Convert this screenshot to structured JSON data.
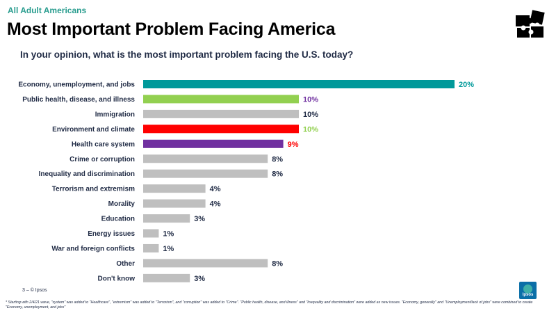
{
  "header": {
    "kicker": "All Adult Americans",
    "title": "Most Important Problem Facing America",
    "subtitle": "In your opinion, what is the most important problem facing the U.S. today?"
  },
  "footer": {
    "page_marker": "3 –  © Ipsos",
    "footnote": "* Starting with 2/4/21 wave, \"system\" was added to \"Healthcare\", \"extremism\" was added to \"Terrorism\", and \"corruption\" was added to \"Crime\". \"Public health, disease, and illness\" and \"Inequality and discrimination\" were added as new issues. \"Economy, generally\" and \"Unemployment/lack of jobs\" were combined to create \"Economy, unemployment, and jobs\"",
    "logo_text": "Ipsos"
  },
  "icons": {
    "logo": "puzzle-pieces-icon",
    "brand": "ipsos-logo-icon"
  },
  "colors": {
    "teal": "#00999a",
    "green": "#92d050",
    "gray": "#bfbfbf",
    "red": "#ff0000",
    "purple": "#7030a0",
    "navy": "#1f2a44"
  },
  "chart_data": {
    "type": "bar",
    "orientation": "horizontal",
    "categories": [
      "Economy, unemployment, and jobs",
      "Public health, disease, and illness",
      "Immigration",
      "Environment and climate",
      "Health care system",
      "Crime or corruption",
      "Inequality and discrimination",
      "Terrorism and extremism",
      "Morality",
      "Education",
      "Energy issues",
      "War and foreign conflicts",
      "Other",
      "Don't know"
    ],
    "values": [
      20,
      10,
      10,
      10,
      9,
      8,
      8,
      4,
      4,
      3,
      1,
      1,
      8,
      3
    ],
    "value_labels": [
      "20%",
      "10%",
      "10%",
      "10%",
      "9%",
      "8%",
      "8%",
      "4%",
      "4%",
      "3%",
      "1%",
      "1%",
      "8%",
      "3%"
    ],
    "bar_colors": [
      "#00999a",
      "#92d050",
      "#bfbfbf",
      "#ff0000",
      "#7030a0",
      "#bfbfbf",
      "#bfbfbf",
      "#bfbfbf",
      "#bfbfbf",
      "#bfbfbf",
      "#bfbfbf",
      "#bfbfbf",
      "#bfbfbf",
      "#bfbfbf"
    ],
    "label_colors": [
      "#00999a",
      "#7030a0",
      "#1f2a44",
      "#92d050",
      "#ff0000",
      "#1f2a44",
      "#1f2a44",
      "#1f2a44",
      "#1f2a44",
      "#1f2a44",
      "#1f2a44",
      "#1f2a44",
      "#1f2a44",
      "#1f2a44"
    ],
    "xlim": [
      0,
      20
    ],
    "grid": false,
    "legend": "none"
  }
}
